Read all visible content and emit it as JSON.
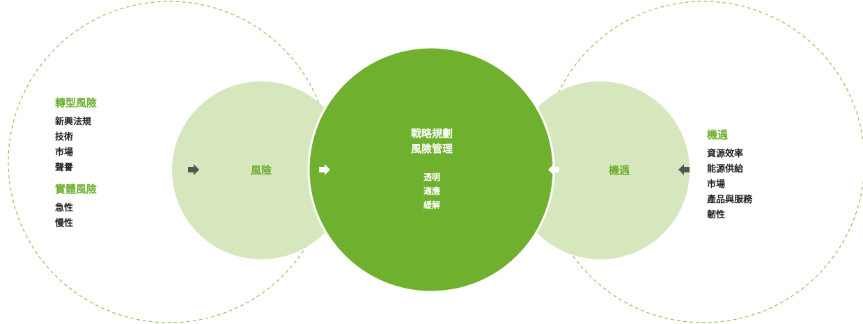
{
  "colors": {
    "center_fill": "#70b02f",
    "mid_fill": "#d6e6bd",
    "dashed_stroke": "#8cc05a",
    "arrow_fill": "#555555",
    "accent_text": "#6db132"
  },
  "left_outer": {
    "groups": [
      {
        "title": "轉型風險",
        "items": [
          "新興法規",
          "技術",
          "市場",
          "聲譽"
        ]
      },
      {
        "title": "實體風險",
        "items": [
          "急性",
          "慢性"
        ]
      }
    ]
  },
  "left_mid": {
    "label": "風險"
  },
  "center": {
    "title_lines": [
      "戰略規劃",
      "風險管理"
    ],
    "items": [
      "透明",
      "適應",
      "緩解"
    ]
  },
  "right_mid": {
    "label": "機遇"
  },
  "right_outer": {
    "title": "機遇",
    "items": [
      "資源效率",
      "能源供給",
      "市場",
      "產品與服務",
      "韌性"
    ]
  },
  "arrows": [
    {
      "icon": "arrow-right-icon",
      "direction": "right"
    },
    {
      "icon": "arrow-right-icon",
      "direction": "right"
    },
    {
      "icon": "arrow-left-icon",
      "direction": "left"
    },
    {
      "icon": "arrow-left-icon",
      "direction": "left"
    }
  ]
}
